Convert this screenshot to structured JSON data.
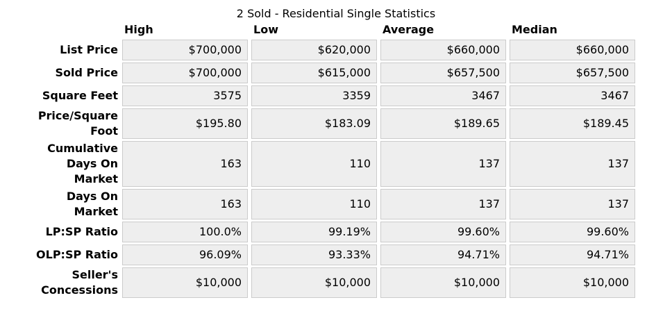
{
  "title": "2 Sold - Residential Single Statistics",
  "chart_data": {
    "type": "table",
    "title": "2 Sold - Residential Single Statistics",
    "columns": [
      "High",
      "Low",
      "Average",
      "Median"
    ],
    "rows": [
      {
        "label": "List Price",
        "values": [
          "$700,000",
          "$620,000",
          "$660,000",
          "$660,000"
        ]
      },
      {
        "label": "Sold Price",
        "values": [
          "$700,000",
          "$615,000",
          "$657,500",
          "$657,500"
        ]
      },
      {
        "label": "Square Feet",
        "values": [
          "3575",
          "3359",
          "3467",
          "3467"
        ]
      },
      {
        "label": "Price/Square Foot",
        "label_display": [
          "Price/Square",
          "Foot"
        ],
        "values": [
          "$195.80",
          "$183.09",
          "$189.65",
          "$189.45"
        ]
      },
      {
        "label": "Cumulative Days On Market",
        "label_display": [
          "Cumulative",
          "Days On",
          "Market"
        ],
        "values": [
          "163",
          "110",
          "137",
          "137"
        ]
      },
      {
        "label": "Days On Market",
        "label_display": [
          "Days On",
          "Market"
        ],
        "values": [
          "163",
          "110",
          "137",
          "137"
        ]
      },
      {
        "label": "LP:SP Ratio",
        "values": [
          "100.0%",
          "99.19%",
          "99.60%",
          "99.60%"
        ]
      },
      {
        "label": "OLP:SP Ratio",
        "values": [
          "96.09%",
          "93.33%",
          "94.71%",
          "94.71%"
        ]
      },
      {
        "label": "Seller's Concessions",
        "label_display": [
          "Seller's",
          "Concessions"
        ],
        "values": [
          "$10,000",
          "$10,000",
          "$10,000",
          "$10,000"
        ]
      }
    ]
  },
  "colors": {
    "page_bg": "#ffffff",
    "cell_bg": "#eeeeee",
    "cell_border": "#cbcbcb",
    "text": "#000000"
  }
}
